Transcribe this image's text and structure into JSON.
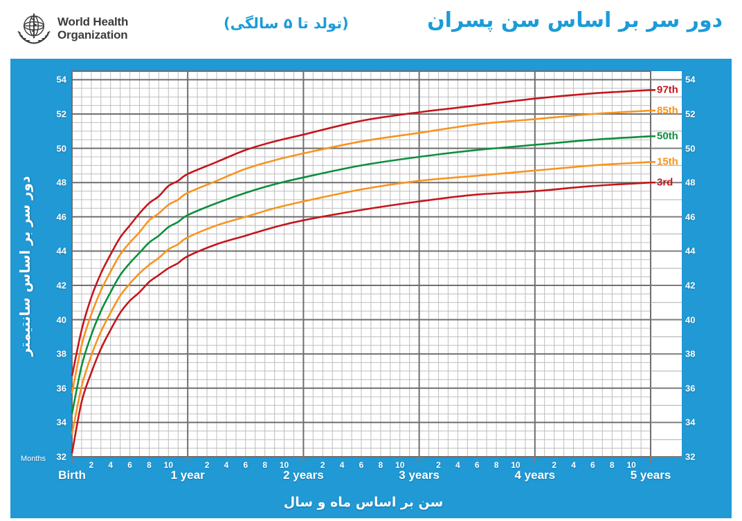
{
  "header": {
    "logo_line1": "World Health",
    "logo_line2": "Organization",
    "title": "دور سر بر اساس سن پسران",
    "subtitle": "(تولد تا ۵ سالگی)"
  },
  "colors": {
    "panel_blue": "#2099d5",
    "title_blue": "#1b9cd8",
    "red": "#c4161c",
    "orange": "#f7941e",
    "green": "#0b8f3c",
    "grid_minor": "#bdbdbd",
    "grid_major": "#6e6e6e",
    "strip_line_major": "#7d7d7d",
    "strip_line_minor": "#ababab",
    "logo_gray": "#3b3b3b"
  },
  "axes": {
    "y_label": "دور سر بر اساس سانتیمتر",
    "x_label": "سن بر اساس ماه و سال",
    "months_caption": "Months",
    "y_ticks": [
      54,
      52,
      50,
      48,
      46,
      44,
      42,
      40,
      38,
      36,
      34,
      32
    ],
    "x_year_labels": [
      "Birth",
      "1 year",
      "2 years",
      "3 years",
      "4 years",
      "5 years"
    ],
    "x_month_ticks": [
      2,
      4,
      6,
      8,
      10
    ],
    "y_min": 32,
    "y_max": 54.5,
    "x_min_months": 0,
    "x_max_months": 60
  },
  "chart_data": {
    "type": "line",
    "title": "دور سر بر اساس سن پسران (تولد تا ۵ سالگی)",
    "xlabel": "سن بر اساس ماه و سال",
    "ylabel": "دور سر بر اساس سانتیمتر",
    "xlim_months": [
      0,
      60
    ],
    "ylim": [
      32,
      54.5
    ],
    "grid": true,
    "legend_position": "right-of-plot",
    "x_months": [
      0,
      1,
      2,
      3,
      4,
      5,
      6,
      7,
      8,
      9,
      10,
      11,
      12,
      15,
      18,
      21,
      24,
      30,
      36,
      42,
      48,
      54,
      60
    ],
    "series": [
      {
        "name": "97th",
        "color": "red",
        "values": [
          36.7,
          39.4,
          41.3,
          42.7,
          43.8,
          44.8,
          45.5,
          46.2,
          46.8,
          47.2,
          47.8,
          48.1,
          48.5,
          49.2,
          49.9,
          50.4,
          50.8,
          51.6,
          52.1,
          52.5,
          52.9,
          53.2,
          53.4
        ]
      },
      {
        "name": "85th",
        "color": "orange",
        "values": [
          35.7,
          38.5,
          40.3,
          41.7,
          42.8,
          43.8,
          44.5,
          45.1,
          45.8,
          46.2,
          46.7,
          47.0,
          47.4,
          48.1,
          48.8,
          49.3,
          49.7,
          50.4,
          50.9,
          51.4,
          51.7,
          52.0,
          52.2
        ]
      },
      {
        "name": "50th",
        "color": "green",
        "values": [
          34.5,
          37.3,
          39.1,
          40.5,
          41.6,
          42.6,
          43.3,
          43.9,
          44.5,
          44.9,
          45.4,
          45.7,
          46.1,
          46.8,
          47.4,
          47.9,
          48.3,
          49.0,
          49.5,
          49.9,
          50.2,
          50.5,
          50.7
        ]
      },
      {
        "name": "15th",
        "color": "orange",
        "values": [
          33.3,
          36.1,
          37.9,
          39.3,
          40.4,
          41.4,
          42.1,
          42.7,
          43.2,
          43.6,
          44.1,
          44.4,
          44.8,
          45.5,
          46.0,
          46.5,
          46.9,
          47.6,
          48.1,
          48.4,
          48.7,
          49.0,
          49.2
        ]
      },
      {
        "name": "3rd",
        "color": "red",
        "values": [
          32.2,
          35.2,
          36.9,
          38.3,
          39.4,
          40.4,
          41.1,
          41.6,
          42.2,
          42.6,
          43.0,
          43.3,
          43.7,
          44.4,
          44.9,
          45.4,
          45.8,
          46.4,
          46.9,
          47.3,
          47.5,
          47.8,
          48.0
        ]
      }
    ]
  }
}
